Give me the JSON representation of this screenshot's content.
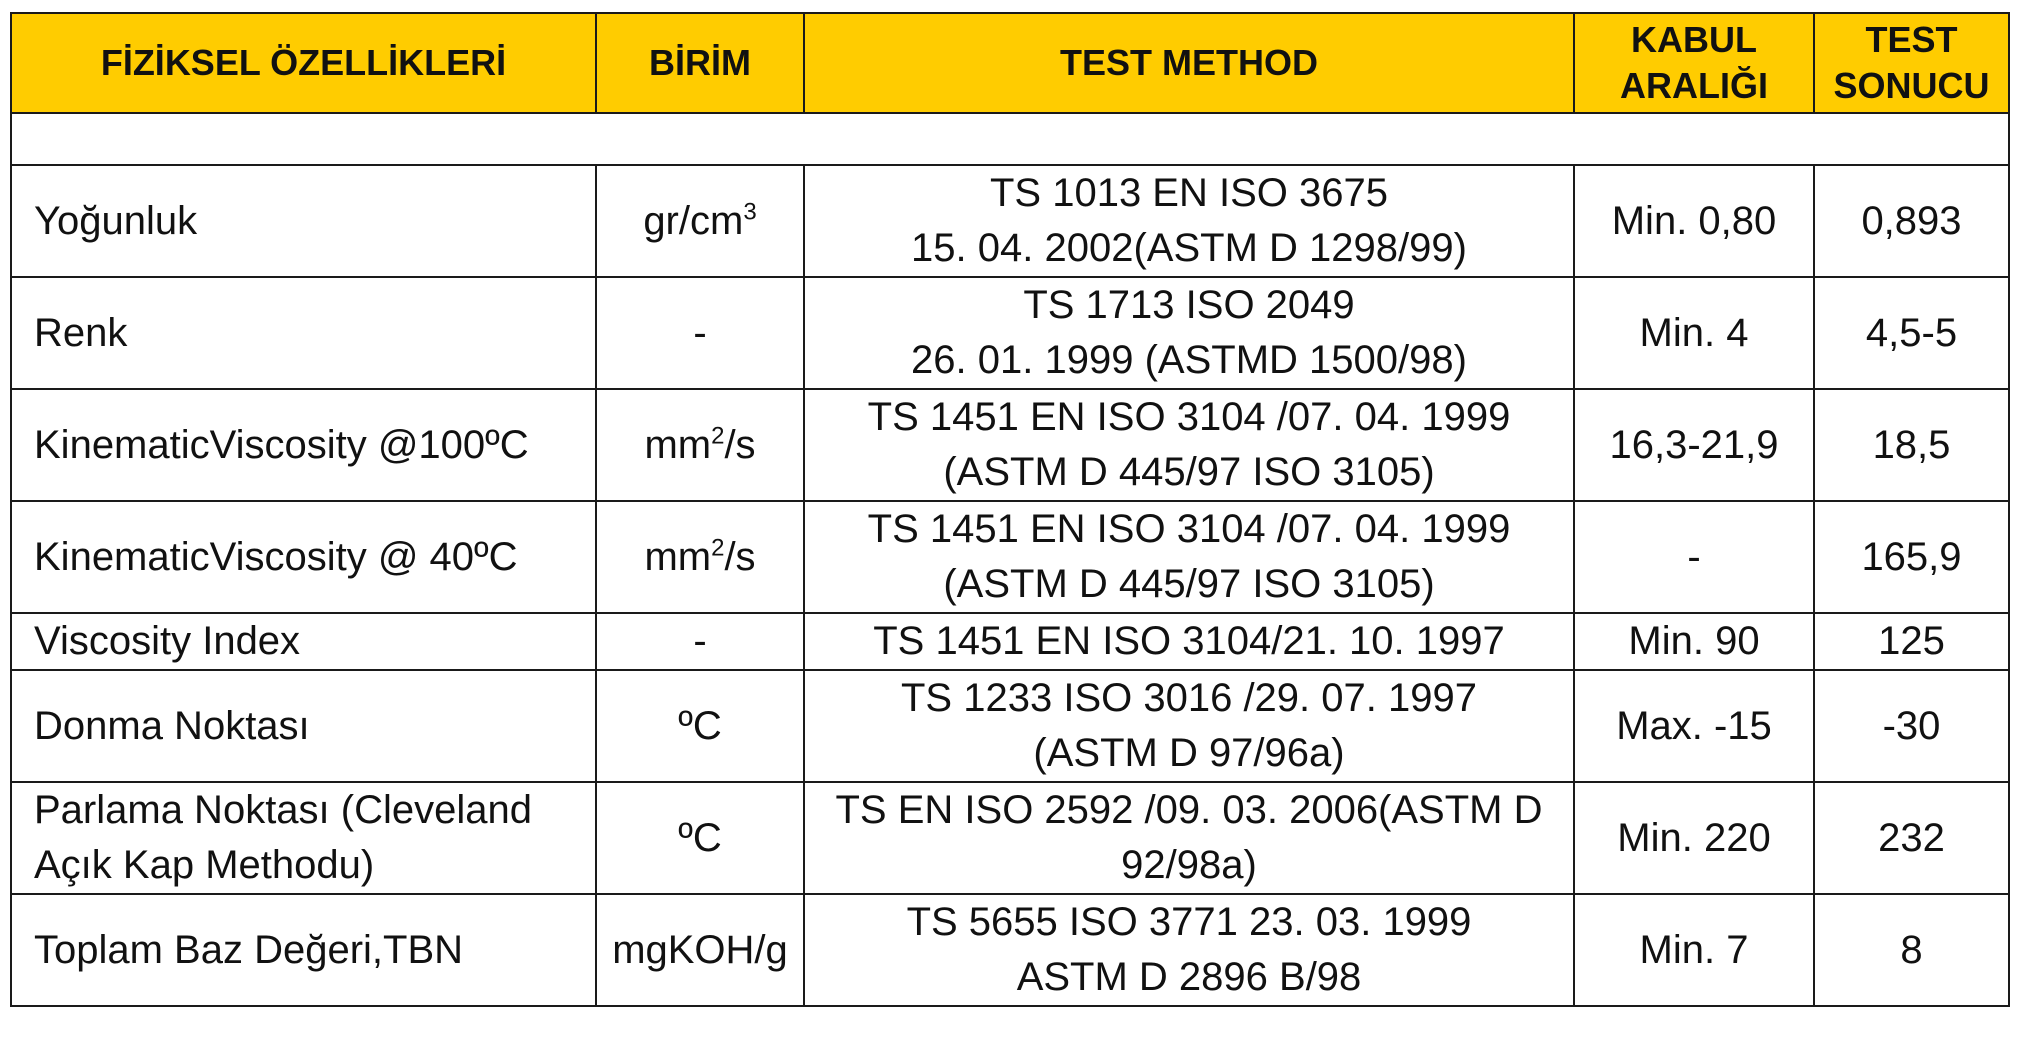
{
  "headers": {
    "property": "FİZİKSEL ÖZELLİKLERİ",
    "unit": "BİRİM",
    "method": "TEST METHOD",
    "range_line1": "KABUL",
    "range_line2": "ARALIĞI",
    "result_line1": "TEST",
    "result_line2": "SONUCU"
  },
  "rows": [
    {
      "property": "Yoğunluk",
      "unit_base": "gr/cm",
      "unit_sup": "3",
      "unit_tail": "",
      "method_line1": "TS 1013 EN ISO 3675",
      "method_line2": "15. 04. 2002(ASTM D 1298/99)",
      "range": "Min. 0,80",
      "result": "0,893"
    },
    {
      "property": "Renk",
      "unit": "-",
      "method_line1": "TS 1713 ISO 2049",
      "method_line2": "26. 01. 1999 (ASTMD 1500/98)",
      "range": "Min. 4",
      "result": "4,5-5"
    },
    {
      "property": "KinematicViscosity @100ºC",
      "unit_base": "mm",
      "unit_sup": "2",
      "unit_tail": "/s",
      "method_line1": "TS 1451 EN ISO 3104 /07. 04. 1999",
      "method_line2": "(ASTM D 445/97 ISO 3105)",
      "range": "16,3-21,9",
      "result": "18,5"
    },
    {
      "property": "KinematicViscosity @ 40ºC",
      "unit_base": "mm",
      "unit_sup": "2",
      "unit_tail": "/s",
      "method_line1": "TS 1451 EN ISO 3104 /07. 04. 1999",
      "method_line2": "(ASTM D 445/97 ISO 3105)",
      "range": "-",
      "result": "165,9"
    },
    {
      "property": "Viscosity Index",
      "unit": "-",
      "method_line1": "TS 1451 EN ISO 3104/21. 10. 1997",
      "range": "Min. 90",
      "result": "125"
    },
    {
      "property": "Donma Noktası",
      "unit": "ºC",
      "method_line1": "TS 1233 ISO 3016 /29. 07. 1997",
      "method_line2": "(ASTM D 97/96a)",
      "range": "Max. -15",
      "result": "-30"
    },
    {
      "property_line1": "Parlama Noktası (Cleveland",
      "property_line2": "Açık Kap Methodu)",
      "unit": "ºC",
      "method_line1": "TS EN ISO 2592 /09. 03. 2006(ASTM D",
      "method_line2": "92/98a)",
      "range": "Min. 220",
      "result": "232"
    },
    {
      "property": "Toplam Baz Değeri,TBN",
      "unit": "mgKOH/g",
      "method_line1": "TS 5655 ISO 3771 23. 03. 1999",
      "method_line2": "ASTM D 2896 B/98",
      "range": "Min. 7",
      "result": "8"
    }
  ]
}
